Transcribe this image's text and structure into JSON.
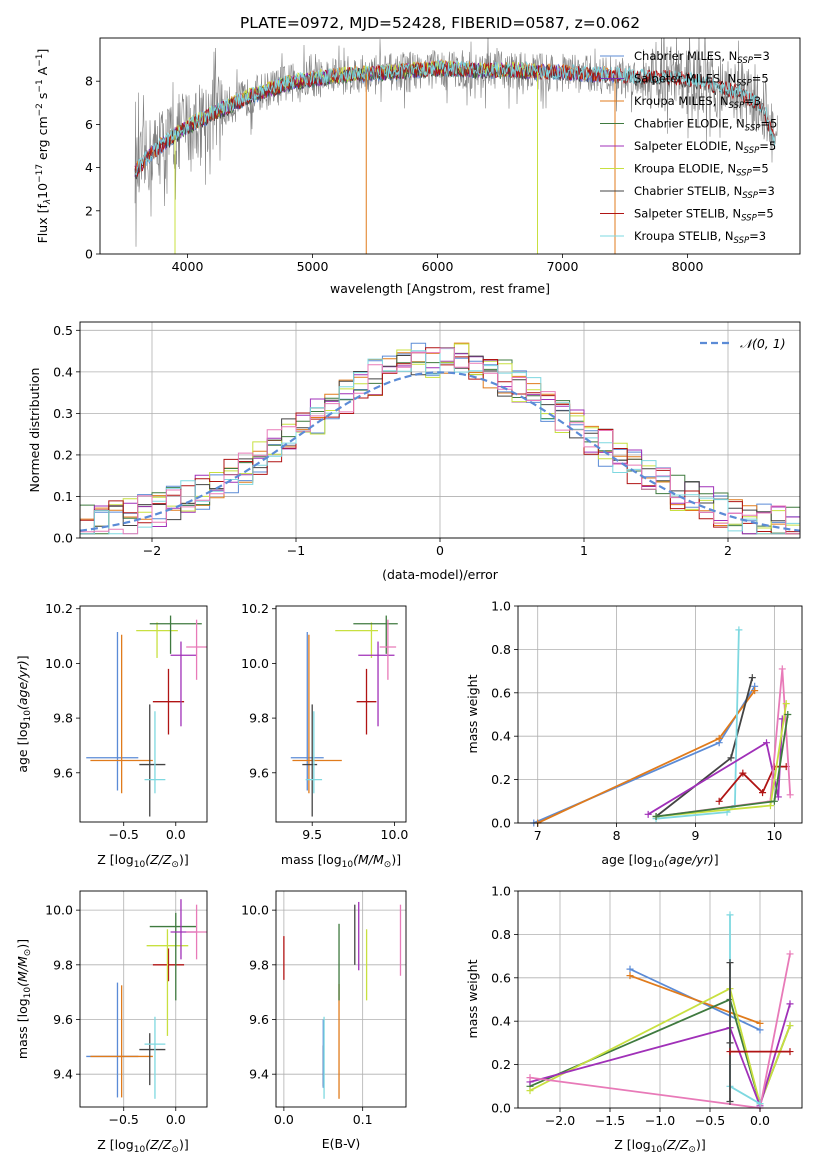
{
  "figure": {
    "title": "PLATE=0972, MJD=52428, FIBERID=0587, z=0.062"
  },
  "colors": {
    "Chabrier MILES": "#5b8bd6",
    "Salpeter MILES": "#7b2fb0",
    "Kroupa MILES": "#e07b1c",
    "Chabrier ELODIE": "#3f7a3f",
    "Salpeter ELODIE": "#a030b8",
    "Kroupa ELODIE": "#c8e040",
    "Chabrier STELIB": "#444444",
    "Salpeter STELIB": "#b01414",
    "Kroupa STELIB": "#7ed8e0",
    "pink": "#e87ab8",
    "spectrum_gray": "#808080",
    "gauss": "#5b8bd6"
  },
  "chart_data": [
    {
      "type": "line",
      "id": "spectrum",
      "xlabel": "wavelength [Angstrom, rest frame]",
      "ylabel": "Flux [f",
      "xlim": [
        3300,
        8900
      ],
      "ylim": [
        0,
        10
      ],
      "xticks": [
        "4000",
        "5000",
        "6000",
        "7000",
        "8000"
      ],
      "yticks": [
        "0",
        "2",
        "4",
        "6",
        "8"
      ],
      "legend_position": "upper-right",
      "legend": [
        {
          "name": "Chabrier MILES, N",
          "sub": "SSP",
          "tail": "=3"
        },
        {
          "name": "Salpeter MILES, N",
          "sub": "SSP",
          "tail": "=5"
        },
        {
          "name": "Kroupa MILES, N",
          "sub": "SSP",
          "tail": "=3"
        },
        {
          "name": "Chabrier ELODIE, N",
          "sub": "SSP",
          "tail": "=5"
        },
        {
          "name": "Salpeter ELODIE, N",
          "sub": "SSP",
          "tail": "=5"
        },
        {
          "name": "Kroupa ELODIE, N",
          "sub": "SSP",
          "tail": "=5"
        },
        {
          "name": "Chabrier STELIB, N",
          "sub": "SSP",
          "tail": "=3"
        },
        {
          "name": "Salpeter STELIB, N",
          "sub": "SSP",
          "tail": "=5"
        },
        {
          "name": "Kroupa STELIB, N",
          "sub": "SSP",
          "tail": "=3"
        }
      ],
      "continuum": {
        "x": [
          3580,
          3700,
          3850,
          4000,
          4200,
          4500,
          4800,
          5000,
          5300,
          5600,
          6000,
          6300,
          6600,
          7000,
          7300,
          7600,
          7800,
          8000,
          8200,
          8400,
          8600,
          8700
        ],
        "y": [
          3.8,
          4.6,
          5.3,
          5.9,
          6.5,
          7.3,
          7.9,
          8.1,
          8.3,
          8.4,
          8.6,
          8.5,
          8.5,
          8.4,
          8.3,
          8.2,
          8.2,
          8.1,
          7.8,
          7.5,
          6.8,
          5.2
        ]
      }
    },
    {
      "type": "step",
      "id": "residuals",
      "xlabel": "(data-model)/error",
      "ylabel": "Normed distribution",
      "xlim": [
        -2.5,
        2.5
      ],
      "ylim": [
        0,
        0.52
      ],
      "xticks": [
        "−2",
        "−1",
        "0",
        "1",
        "2"
      ],
      "yticks": [
        "0.0",
        "0.1",
        "0.2",
        "0.3",
        "0.4",
        "0.5"
      ],
      "grid": true,
      "gauss_label": "𝒩(0, 1)",
      "legend_position": "upper-right"
    },
    {
      "type": "errorbar",
      "id": "Z-age",
      "xlabel_pre": "Z [log",
      "xlabel_post": "(Z/Z",
      "ylabel": "age  [log",
      "xlim": [
        -0.92,
        0.3
      ],
      "ylim": [
        9.42,
        10.21
      ],
      "xticks": [
        "−0.5",
        "0.0"
      ],
      "yticks": [
        "9.6",
        "9.8",
        "10.0",
        "10.2"
      ],
      "points": [
        {
          "s": "Chabrier MILES",
          "x": -0.56,
          "xerr": [
            0.3,
            0.2
          ],
          "y": 9.655,
          "yerr": [
            0.12,
            0.46
          ]
        },
        {
          "s": "Kroupa MILES",
          "x": -0.52,
          "xerr": [
            0.3,
            0.3
          ],
          "y": 9.645,
          "yerr": [
            0.12,
            0.46
          ]
        },
        {
          "s": "Chabrier STELIB",
          "x": -0.25,
          "xerr": [
            0.1,
            0.15
          ],
          "y": 9.63,
          "yerr": [
            0.19,
            0.22
          ]
        },
        {
          "s": "Kroupa STELIB",
          "x": -0.2,
          "xerr": [
            0.1,
            0.1
          ],
          "y": 9.575,
          "yerr": [
            0.05,
            0.25
          ]
        },
        {
          "s": "Salpeter STELIB",
          "x": -0.07,
          "xerr": [
            0.15,
            0.15
          ],
          "y": 9.86,
          "yerr": [
            0.12,
            0.12
          ]
        },
        {
          "s": "Kroupa ELODIE",
          "x": -0.18,
          "xerr": [
            0.2,
            0.2
          ],
          "y": 10.12,
          "yerr": [
            0.1,
            0.03
          ]
        },
        {
          "s": "Chabrier ELODIE",
          "x": -0.05,
          "xerr": [
            0.2,
            0.3
          ],
          "y": 10.145,
          "yerr": [
            0.11,
            0.03
          ]
        },
        {
          "s": "Salpeter ELODIE",
          "x": 0.05,
          "xerr": [
            0.1,
            0.15
          ],
          "y": 10.03,
          "yerr": [
            0.26,
            0.05
          ]
        },
        {
          "s": "pink",
          "x": 0.2,
          "xerr": [
            0.1,
            0.1
          ],
          "y": 10.06,
          "yerr": [
            0.12,
            0.1
          ]
        }
      ]
    },
    {
      "type": "errorbar",
      "id": "mass-age",
      "xlabel_pre": "mass [log",
      "xlabel_post": "(M/M",
      "xlim": [
        9.28,
        10.07
      ],
      "ylim": [
        9.42,
        10.21
      ],
      "xticks": [
        "9.5",
        "10.0"
      ],
      "yticks": [
        "9.6",
        "9.8",
        "10.0",
        "10.2"
      ],
      "points": [
        {
          "s": "Chabrier MILES",
          "x": 9.47,
          "xerr": [
            0.1,
            0.1
          ],
          "y": 9.655,
          "yerr": [
            0.12,
            0.46
          ]
        },
        {
          "s": "Kroupa MILES",
          "x": 9.48,
          "xerr": [
            0.1,
            0.2
          ],
          "y": 9.645,
          "yerr": [
            0.12,
            0.46
          ]
        },
        {
          "s": "Chabrier STELIB",
          "x": 9.5,
          "xerr": [
            0.06,
            0.03
          ],
          "y": 9.63,
          "yerr": [
            0.19,
            0.22
          ]
        },
        {
          "s": "Kroupa STELIB",
          "x": 9.51,
          "xerr": [
            0.05,
            0.05
          ],
          "y": 9.575,
          "yerr": [
            0.05,
            0.25
          ]
        },
        {
          "s": "Salpeter STELIB",
          "x": 9.83,
          "xerr": [
            0.06,
            0.06
          ],
          "y": 9.86,
          "yerr": [
            0.12,
            0.12
          ]
        },
        {
          "s": "Kroupa ELODIE",
          "x": 9.86,
          "xerr": [
            0.22,
            0.04
          ],
          "y": 10.12,
          "yerr": [
            0.1,
            0.03
          ]
        },
        {
          "s": "Chabrier ELODIE",
          "x": 9.95,
          "xerr": [
            0.2,
            0.07
          ],
          "y": 10.145,
          "yerr": [
            0.11,
            0.03
          ]
        },
        {
          "s": "Salpeter ELODIE",
          "x": 9.9,
          "xerr": [
            0.12,
            0.1
          ],
          "y": 10.03,
          "yerr": [
            0.26,
            0.05
          ]
        },
        {
          "s": "pink",
          "x": 9.96,
          "xerr": [
            0.05,
            0.05
          ],
          "y": 10.06,
          "yerr": [
            0.12,
            0.1
          ]
        }
      ]
    },
    {
      "type": "line",
      "id": "age-weight",
      "xlabel": "age  [log",
      "ylabel": "mass weight",
      "xlim": [
        6.75,
        10.35
      ],
      "ylim": [
        0,
        1
      ],
      "xticks": [
        "7",
        "8",
        "9",
        "10"
      ],
      "yticks": [
        "0.0",
        "0.2",
        "0.4",
        "0.6",
        "0.8",
        "1.0"
      ],
      "grid": true,
      "series": [
        {
          "s": "Chabrier MILES",
          "x": [
            6.95,
            9.3,
            9.75
          ],
          "y": [
            0.0,
            0.37,
            0.63
          ]
        },
        {
          "s": "Kroupa MILES",
          "x": [
            7.0,
            9.3,
            9.75
          ],
          "y": [
            0.0,
            0.39,
            0.61
          ]
        },
        {
          "s": "Chabrier STELIB",
          "x": [
            8.5,
            9.45,
            9.72
          ],
          "y": [
            0.03,
            0.3,
            0.67
          ]
        },
        {
          "s": "Kroupa STELIB",
          "x": [
            8.5,
            9.4,
            9.5,
            9.55
          ],
          "y": [
            0.02,
            0.05,
            0.08,
            0.89
          ]
        },
        {
          "s": "Salpeter STELIB",
          "x": [
            9.3,
            9.6,
            9.85,
            10.0,
            10.15
          ],
          "y": [
            0.1,
            0.23,
            0.14,
            0.26,
            0.26
          ]
        },
        {
          "s": "Salpeter ELODIE",
          "x": [
            8.4,
            9.9,
            10.05,
            10.1
          ],
          "y": [
            0.04,
            0.37,
            0.12,
            0.48
          ]
        },
        {
          "s": "pink",
          "x": [
            8.5,
            9.95,
            10.1,
            10.2
          ],
          "y": [
            0.03,
            0.1,
            0.71,
            0.13
          ]
        },
        {
          "s": "Kroupa ELODIE",
          "x": [
            8.5,
            9.95,
            10.15
          ],
          "y": [
            0.03,
            0.08,
            0.55
          ]
        },
        {
          "s": "Chabrier ELODIE",
          "x": [
            8.5,
            10.0,
            10.17
          ],
          "y": [
            0.03,
            0.1,
            0.5
          ]
        }
      ]
    },
    {
      "type": "errorbar",
      "id": "Z-mass",
      "xlabel_pre": "Z [log",
      "xlabel_post": "(Z/Z",
      "ylabel": "mass [log",
      "xlim": [
        -0.92,
        0.3
      ],
      "ylim": [
        9.28,
        10.07
      ],
      "xticks": [
        "−0.5",
        "0.0"
      ],
      "yticks": [
        "9.4",
        "9.6",
        "9.8",
        "10.0"
      ],
      "grid": true,
      "points": [
        {
          "s": "Chabrier MILES",
          "x": -0.56,
          "xerr": [
            0.3,
            0.2
          ],
          "y": 9.465,
          "yerr": [
            0.15,
            0.27
          ]
        },
        {
          "s": "Kroupa MILES",
          "x": -0.52,
          "xerr": [
            0.3,
            0.3
          ],
          "y": 9.465,
          "yerr": [
            0.15,
            0.26
          ]
        },
        {
          "s": "Chabrier STELIB",
          "x": -0.25,
          "xerr": [
            0.1,
            0.15
          ],
          "y": 9.49,
          "yerr": [
            0.13,
            0.06
          ]
        },
        {
          "s": "Kroupa STELIB",
          "x": -0.2,
          "xerr": [
            0.1,
            0.1
          ],
          "y": 9.51,
          "yerr": [
            0.2,
            0.1
          ]
        },
        {
          "s": "Salpeter STELIB",
          "x": -0.07,
          "xerr": [
            0.15,
            0.15
          ],
          "y": 9.8,
          "yerr": [
            0.06,
            0.06
          ]
        },
        {
          "s": "Kroupa ELODIE",
          "x": -0.08,
          "xerr": [
            0.2,
            0.2
          ],
          "y": 9.87,
          "yerr": [
            0.33,
            0.06
          ]
        },
        {
          "s": "Chabrier ELODIE",
          "x": 0.0,
          "xerr": [
            0.25,
            0.2
          ],
          "y": 9.94,
          "yerr": [
            0.27,
            0.05
          ]
        },
        {
          "s": "Salpeter ELODIE",
          "x": 0.05,
          "xerr": [
            0.1,
            0.15
          ],
          "y": 9.92,
          "yerr": [
            0.1,
            0.12
          ]
        },
        {
          "s": "pink",
          "x": 0.2,
          "xerr": [
            0.1,
            0.1
          ],
          "y": 9.92,
          "yerr": [
            0.1,
            0.1
          ]
        }
      ]
    },
    {
      "type": "errorbar",
      "id": "EBV-mass",
      "xlabel": "E(B-V)",
      "xlim": [
        -0.01,
        0.155
      ],
      "ylim": [
        9.28,
        10.07
      ],
      "xticks": [
        "0.0",
        "0.1"
      ],
      "yticks": [
        "9.4",
        "9.6",
        "9.8",
        "10.0"
      ],
      "grid": true,
      "points": [
        {
          "s": "Salpeter STELIB",
          "x": 0.0,
          "y": 9.825,
          "yerr": [
            0.08,
            0.08
          ]
        },
        {
          "s": "Chabrier STELIB",
          "x": 0.05,
          "y": 9.405,
          "yerr": [
            0.05,
            0.1
          ]
        },
        {
          "s": "Chabrier MILES",
          "x": 0.05,
          "y": 9.55,
          "yerr": [
            0.2,
            0.05
          ]
        },
        {
          "s": "Kroupa STELIB",
          "x": 0.051,
          "y": 9.51,
          "yerr": [
            0.2,
            0.1
          ]
        },
        {
          "s": "Kroupa MILES",
          "x": 0.07,
          "y": 9.52,
          "yerr": [
            0.21,
            0.21
          ]
        },
        {
          "s": "Chabrier ELODIE",
          "x": 0.07,
          "y": 9.85,
          "yerr": [
            0.18,
            0.1
          ]
        },
        {
          "s": "Chabrier STELIB",
          "x": 0.09,
          "y": 9.92,
          "yerr": [
            0.12,
            0.1
          ]
        },
        {
          "s": "Salpeter ELODIE",
          "x": 0.095,
          "y": 9.9,
          "yerr": [
            0.12,
            0.13
          ]
        },
        {
          "s": "Kroupa ELODIE",
          "x": 0.105,
          "y": 9.8,
          "yerr": [
            0.13,
            0.13
          ]
        },
        {
          "s": "pink",
          "x": 0.148,
          "y": 9.89,
          "yerr": [
            0.13,
            0.13
          ]
        }
      ]
    },
    {
      "type": "line",
      "id": "Z-weight",
      "xlabel_pre": "Z [log",
      "xlabel_post": "(Z/Z",
      "ylabel": "mass weight",
      "xlim": [
        -2.42,
        0.42
      ],
      "ylim": [
        0,
        1
      ],
      "xticks": [
        "−2.0",
        "−1.5",
        "−1.0",
        "−0.5",
        "0.0"
      ],
      "yticks": [
        "0.0",
        "0.2",
        "0.4",
        "0.6",
        "0.8",
        "1.0"
      ],
      "grid": true,
      "series": [
        {
          "s": "Chabrier MILES",
          "x": [
            -1.3,
            0.0
          ],
          "y": [
            0.64,
            0.36
          ]
        },
        {
          "s": "Kroupa MILES",
          "x": [
            -1.3,
            0.0
          ],
          "y": [
            0.61,
            0.39
          ]
        },
        {
          "s": "Chabrier ELODIE",
          "x": [
            -2.3,
            -0.3,
            0.0,
            0.3
          ],
          "y": [
            0.1,
            0.5,
            0.02,
            0.38
          ]
        },
        {
          "s": "Kroupa ELODIE",
          "x": [
            -2.3,
            -0.3,
            0.0,
            0.3
          ],
          "y": [
            0.08,
            0.55,
            0.02,
            0.38
          ]
        },
        {
          "s": "Salpeter ELODIE",
          "x": [
            -2.3,
            -0.3,
            0.0,
            0.3
          ],
          "y": [
            0.12,
            0.37,
            0.01,
            0.48
          ]
        },
        {
          "s": "pink",
          "x": [
            -2.3,
            0.0,
            0.3
          ],
          "y": [
            0.14,
            0.0,
            0.71
          ]
        },
        {
          "s": "Kroupa STELIB",
          "x": [
            -0.3,
            -0.3,
            0.0
          ],
          "y": [
            0.89,
            0.1,
            0.02
          ]
        },
        {
          "s": "Chabrier STELIB",
          "x": [
            -0.3,
            -0.3,
            -0.3
          ],
          "y": [
            0.67,
            0.3,
            0.03
          ]
        },
        {
          "s": "Salpeter STELIB",
          "x": [
            -0.3,
            0.3
          ],
          "y": [
            0.26,
            0.26
          ]
        }
      ]
    }
  ]
}
